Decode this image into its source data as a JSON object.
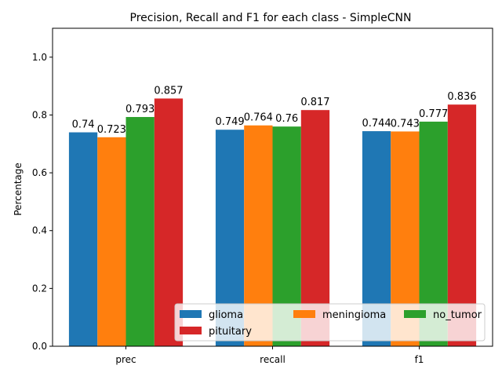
{
  "chart_data": {
    "type": "bar",
    "title": "Precision, Recall and F1 for each class - SimpleCNN",
    "xlabel": "",
    "ylabel": "Percentage",
    "categories": [
      "prec",
      "recall",
      "f1"
    ],
    "ylim": [
      0,
      1.1
    ],
    "yticks": [
      "0.0",
      "0.2",
      "0.4",
      "0.6",
      "0.8",
      "1.0"
    ],
    "legend_position": "lower-right",
    "series": [
      {
        "name": "glioma",
        "color": "#1f77b4",
        "values": [
          0.74,
          0.749,
          0.744
        ],
        "labels": [
          "0.74",
          "0.749",
          "0.744"
        ]
      },
      {
        "name": "meningioma",
        "color": "#ff7f0e",
        "values": [
          0.723,
          0.764,
          0.743
        ],
        "labels": [
          "0.723",
          "0.764",
          "0.743"
        ]
      },
      {
        "name": "no_tumor",
        "color": "#2ca02c",
        "values": [
          0.793,
          0.76,
          0.777
        ],
        "labels": [
          "0.793",
          "0.76",
          "0.777"
        ]
      },
      {
        "name": "pituitary",
        "color": "#d62728",
        "values": [
          0.857,
          0.817,
          0.836
        ],
        "labels": [
          "0.857",
          "0.817",
          "0.836"
        ]
      }
    ]
  }
}
